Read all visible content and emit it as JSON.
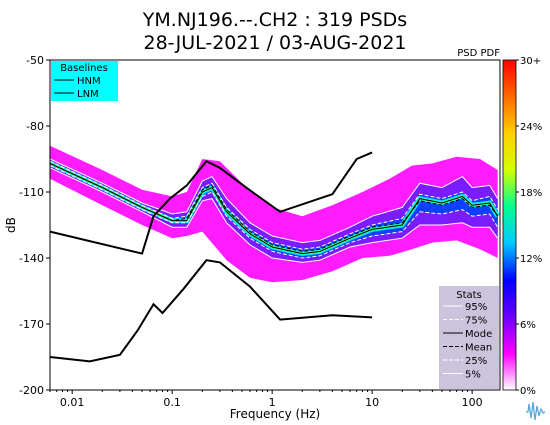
{
  "chart_data": {
    "type": "heatmap",
    "title": "YM.NJ196.--.CH2 : 319 PSDs",
    "subtitle": "28-JUL-2021 / 03-AUG-2021",
    "xlabel": "Frequency (Hz)",
    "ylabel": "dB",
    "x_scale": "log",
    "xlim": [
      0.006,
      190
    ],
    "ylim": [
      -200,
      -50
    ],
    "x_ticks": [
      {
        "value": 0.01,
        "label": "0.01"
      },
      {
        "value": 0.1,
        "label": "0.1"
      },
      {
        "value": 1,
        "label": "1"
      },
      {
        "value": 10,
        "label": "10"
      },
      {
        "value": 100,
        "label": "100"
      }
    ],
    "y_ticks": [
      {
        "value": -50,
        "label": "-50"
      },
      {
        "value": -80,
        "label": "-80"
      },
      {
        "value": -110,
        "label": "-110"
      },
      {
        "value": -140,
        "label": "-140"
      },
      {
        "value": -170,
        "label": "-170"
      },
      {
        "value": -200,
        "label": "-200"
      }
    ],
    "colorbar": {
      "title": "PSD PDF",
      "ticks": [
        "0%",
        "6%",
        "12%",
        "18%",
        "24%",
        "30+"
      ],
      "colors": [
        "#ffffff",
        "#ff00ff",
        "#6a00ff",
        "#0000ff",
        "#00c8ff",
        "#00ff90",
        "#d4ff00",
        "#ffd000",
        "#ff6a00",
        "#ff0000"
      ]
    },
    "baselines": {
      "title": "Baselines",
      "entries": [
        "HNM",
        "LNM"
      ],
      "HNM": [
        [
          0.006,
          -128
        ],
        [
          0.05,
          -138
        ],
        [
          0.065,
          -121
        ],
        [
          0.095,
          -113
        ],
        [
          0.14,
          -107
        ],
        [
          0.22,
          -96
        ],
        [
          0.3,
          -99
        ],
        [
          0.55,
          -108
        ],
        [
          1.2,
          -119
        ],
        [
          4,
          -111
        ],
        [
          7,
          -95
        ],
        [
          10,
          -92
        ]
      ],
      "LNM": [
        [
          0.006,
          -185
        ],
        [
          0.015,
          -187
        ],
        [
          0.03,
          -184
        ],
        [
          0.045,
          -173
        ],
        [
          0.065,
          -161
        ],
        [
          0.08,
          -165
        ],
        [
          0.13,
          -154
        ],
        [
          0.22,
          -141
        ],
        [
          0.3,
          -142
        ],
        [
          0.6,
          -153
        ],
        [
          1.2,
          -168
        ],
        [
          4,
          -166
        ],
        [
          10,
          -167
        ]
      ]
    },
    "stats_legend": {
      "title": "Stats",
      "entries": [
        "95%",
        "75%",
        "Mode",
        "Mean",
        "25%",
        "5%"
      ]
    },
    "series": [
      {
        "name": "95%",
        "color": "#ffffff",
        "points": [
          [
            0.006,
            -95
          ],
          [
            0.02,
            -106
          ],
          [
            0.05,
            -115
          ],
          [
            0.1,
            -120
          ],
          [
            0.14,
            -119
          ],
          [
            0.2,
            -105
          ],
          [
            0.25,
            -103
          ],
          [
            0.35,
            -113
          ],
          [
            0.6,
            -124
          ],
          [
            1,
            -130
          ],
          [
            2,
            -133
          ],
          [
            3,
            -132
          ],
          [
            6,
            -126
          ],
          [
            10,
            -121
          ],
          [
            20,
            -117
          ],
          [
            30,
            -106
          ],
          [
            50,
            -108
          ],
          [
            80,
            -103
          ],
          [
            100,
            -108
          ],
          [
            150,
            -107
          ],
          [
            180,
            -113
          ]
        ]
      },
      {
        "name": "75%",
        "color": "#ffffff",
        "points": [
          [
            0.006,
            -96
          ],
          [
            0.02,
            -107
          ],
          [
            0.05,
            -116
          ],
          [
            0.1,
            -122
          ],
          [
            0.14,
            -121
          ],
          [
            0.2,
            -108
          ],
          [
            0.25,
            -106
          ],
          [
            0.35,
            -117
          ],
          [
            0.6,
            -127
          ],
          [
            1,
            -133
          ],
          [
            2,
            -136
          ],
          [
            3,
            -135
          ],
          [
            6,
            -129
          ],
          [
            10,
            -125
          ],
          [
            20,
            -122
          ],
          [
            30,
            -111
          ],
          [
            50,
            -113
          ],
          [
            80,
            -110
          ],
          [
            100,
            -114
          ],
          [
            150,
            -112
          ],
          [
            180,
            -118
          ]
        ]
      },
      {
        "name": "Mode",
        "color": "#000000",
        "points": [
          [
            0.006,
            -97
          ],
          [
            0.02,
            -108
          ],
          [
            0.05,
            -117
          ],
          [
            0.1,
            -123
          ],
          [
            0.14,
            -123
          ],
          [
            0.2,
            -110
          ],
          [
            0.25,
            -108
          ],
          [
            0.35,
            -119
          ],
          [
            0.6,
            -129
          ],
          [
            1,
            -135
          ],
          [
            2,
            -138
          ],
          [
            3,
            -137
          ],
          [
            6,
            -131
          ],
          [
            10,
            -127
          ],
          [
            20,
            -125
          ],
          [
            30,
            -113
          ],
          [
            50,
            -115
          ],
          [
            80,
            -112
          ],
          [
            100,
            -116
          ],
          [
            150,
            -115
          ],
          [
            180,
            -121
          ]
        ]
      },
      {
        "name": "Mean",
        "color": "#000000",
        "points": [
          [
            0.006,
            -97
          ],
          [
            0.02,
            -108
          ],
          [
            0.05,
            -117
          ],
          [
            0.1,
            -123
          ],
          [
            0.14,
            -122
          ],
          [
            0.2,
            -109
          ],
          [
            0.25,
            -107
          ],
          [
            0.35,
            -118
          ],
          [
            0.6,
            -128
          ],
          [
            1,
            -134
          ],
          [
            2,
            -137
          ],
          [
            3,
            -136
          ],
          [
            6,
            -130
          ],
          [
            10,
            -126
          ],
          [
            20,
            -124
          ],
          [
            30,
            -114
          ],
          [
            50,
            -116
          ],
          [
            80,
            -113
          ],
          [
            100,
            -117
          ],
          [
            150,
            -116
          ],
          [
            180,
            -121
          ]
        ]
      },
      {
        "name": "25%",
        "color": "#ffffff",
        "points": [
          [
            0.006,
            -98
          ],
          [
            0.02,
            -109
          ],
          [
            0.05,
            -118
          ],
          [
            0.1,
            -124
          ],
          [
            0.14,
            -124
          ],
          [
            0.2,
            -112
          ],
          [
            0.25,
            -110
          ],
          [
            0.35,
            -121
          ],
          [
            0.6,
            -131
          ],
          [
            1,
            -137
          ],
          [
            2,
            -140
          ],
          [
            3,
            -139
          ],
          [
            6,
            -133
          ],
          [
            10,
            -130
          ],
          [
            20,
            -128
          ],
          [
            30,
            -119
          ],
          [
            50,
            -120
          ],
          [
            80,
            -118
          ],
          [
            100,
            -121
          ],
          [
            150,
            -120
          ],
          [
            180,
            -126
          ]
        ]
      },
      {
        "name": "5%",
        "color": "#ffffff",
        "points": [
          [
            0.006,
            -99
          ],
          [
            0.02,
            -110
          ],
          [
            0.05,
            -119
          ],
          [
            0.1,
            -126
          ],
          [
            0.14,
            -126
          ],
          [
            0.2,
            -114
          ],
          [
            0.25,
            -113
          ],
          [
            0.35,
            -124
          ],
          [
            0.6,
            -134
          ],
          [
            1,
            -140
          ],
          [
            2,
            -142
          ],
          [
            3,
            -141
          ],
          [
            6,
            -135
          ],
          [
            10,
            -133
          ],
          [
            20,
            -131
          ],
          [
            30,
            -125
          ],
          [
            50,
            -125
          ],
          [
            80,
            -124
          ],
          [
            100,
            -126
          ],
          [
            150,
            -126
          ],
          [
            180,
            -131
          ]
        ]
      }
    ],
    "density_envelope": {
      "upper": [
        [
          0.006,
          -89
        ],
        [
          0.02,
          -100
        ],
        [
          0.05,
          -109
        ],
        [
          0.1,
          -112
        ],
        [
          0.14,
          -110
        ],
        [
          0.2,
          -95
        ],
        [
          0.3,
          -96
        ],
        [
          0.5,
          -106
        ],
        [
          1,
          -117
        ],
        [
          2,
          -121
        ],
        [
          4,
          -116
        ],
        [
          8,
          -110
        ],
        [
          15,
          -104
        ],
        [
          25,
          -98
        ],
        [
          40,
          -97
        ],
        [
          70,
          -94
        ],
        [
          120,
          -95
        ],
        [
          180,
          -100
        ]
      ],
      "lower": [
        [
          180,
          -140
        ],
        [
          120,
          -136
        ],
        [
          70,
          -132
        ],
        [
          40,
          -133
        ],
        [
          25,
          -136
        ],
        [
          15,
          -139
        ],
        [
          8,
          -140
        ],
        [
          4,
          -146
        ],
        [
          2,
          -150
        ],
        [
          1,
          -151
        ],
        [
          0.6,
          -149
        ],
        [
          0.35,
          -141
        ],
        [
          0.2,
          -128
        ],
        [
          0.14,
          -130
        ],
        [
          0.1,
          -131
        ],
        [
          0.05,
          -125
        ],
        [
          0.02,
          -116
        ],
        [
          0.006,
          -104
        ]
      ]
    },
    "grid": false,
    "legend_placement": "top-left"
  }
}
